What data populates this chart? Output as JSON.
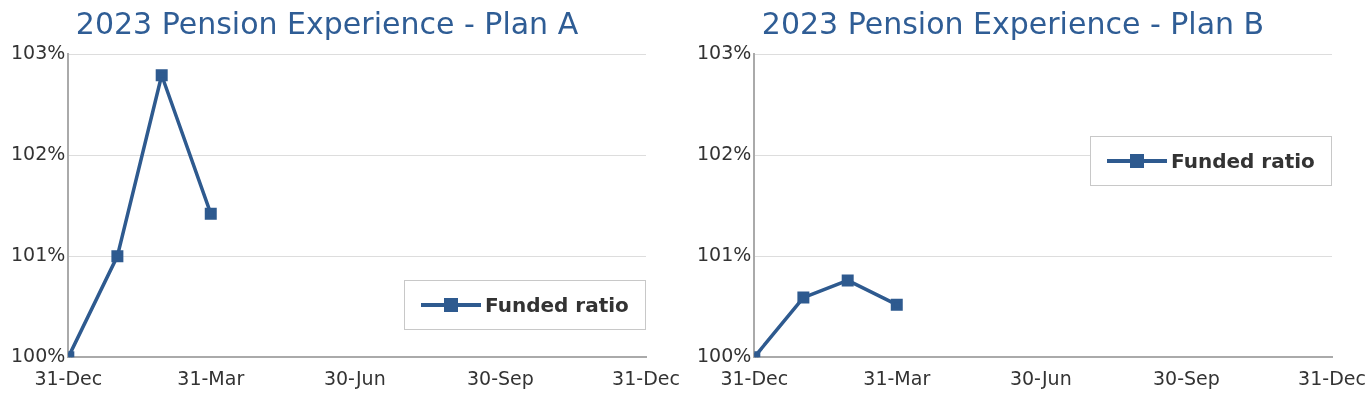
{
  "chart_data": [
    {
      "type": "line",
      "title": "2023 Pension Experience - Plan A",
      "x": [
        "2022-12-31",
        "2023-01-31",
        "2023-02-28",
        "2023-03-31"
      ],
      "series": [
        {
          "name": "Funded ratio",
          "color": "#2e5a8f",
          "values": [
            100.0,
            101.0,
            102.79,
            101.42
          ]
        }
      ],
      "xlim": [
        "2022-12-31",
        "2023-12-31"
      ],
      "xticks": [
        {
          "value": "2022-12-31",
          "label": "31-Dec"
        },
        {
          "value": "2023-03-31",
          "label": "31-Mar"
        },
        {
          "value": "2023-06-30",
          "label": "30-Jun"
        },
        {
          "value": "2023-09-30",
          "label": "30-Sep"
        },
        {
          "value": "2023-12-31",
          "label": "31-Dec"
        }
      ],
      "ylim": [
        100,
        103
      ],
      "yticks": [
        {
          "value": 100,
          "label": "100%"
        },
        {
          "value": 101,
          "label": "101%"
        },
        {
          "value": 102,
          "label": "102%"
        },
        {
          "value": 103,
          "label": "103%"
        }
      ],
      "grid": "y",
      "legend": "bottom right",
      "marker": "square",
      "line_style": "solid"
    },
    {
      "type": "line",
      "title": "2023 Pension Experience - Plan B",
      "x": [
        "2022-12-31",
        "2023-01-31",
        "2023-02-28",
        "2023-03-31"
      ],
      "series": [
        {
          "name": "Funded ratio",
          "color": "#2e5a8f",
          "values": [
            100.0,
            100.59,
            100.76,
            100.52
          ]
        }
      ],
      "xlim": [
        "2022-12-31",
        "2023-12-31"
      ],
      "xticks": [
        {
          "value": "2022-12-31",
          "label": "31-Dec"
        },
        {
          "value": "2023-03-31",
          "label": "31-Mar"
        },
        {
          "value": "2023-06-30",
          "label": "30-Jun"
        },
        {
          "value": "2023-09-30",
          "label": "30-Sep"
        },
        {
          "value": "2023-12-31",
          "label": "31-Dec"
        }
      ],
      "ylim": [
        100,
        103
      ],
      "yticks": [
        {
          "value": 100,
          "label": "100%"
        },
        {
          "value": 101,
          "label": "101%"
        },
        {
          "value": 102,
          "label": "102%"
        },
        {
          "value": 103,
          "label": "103%"
        }
      ],
      "grid": "y",
      "legend": "top right",
      "marker": "square",
      "line_style": "solid"
    }
  ]
}
